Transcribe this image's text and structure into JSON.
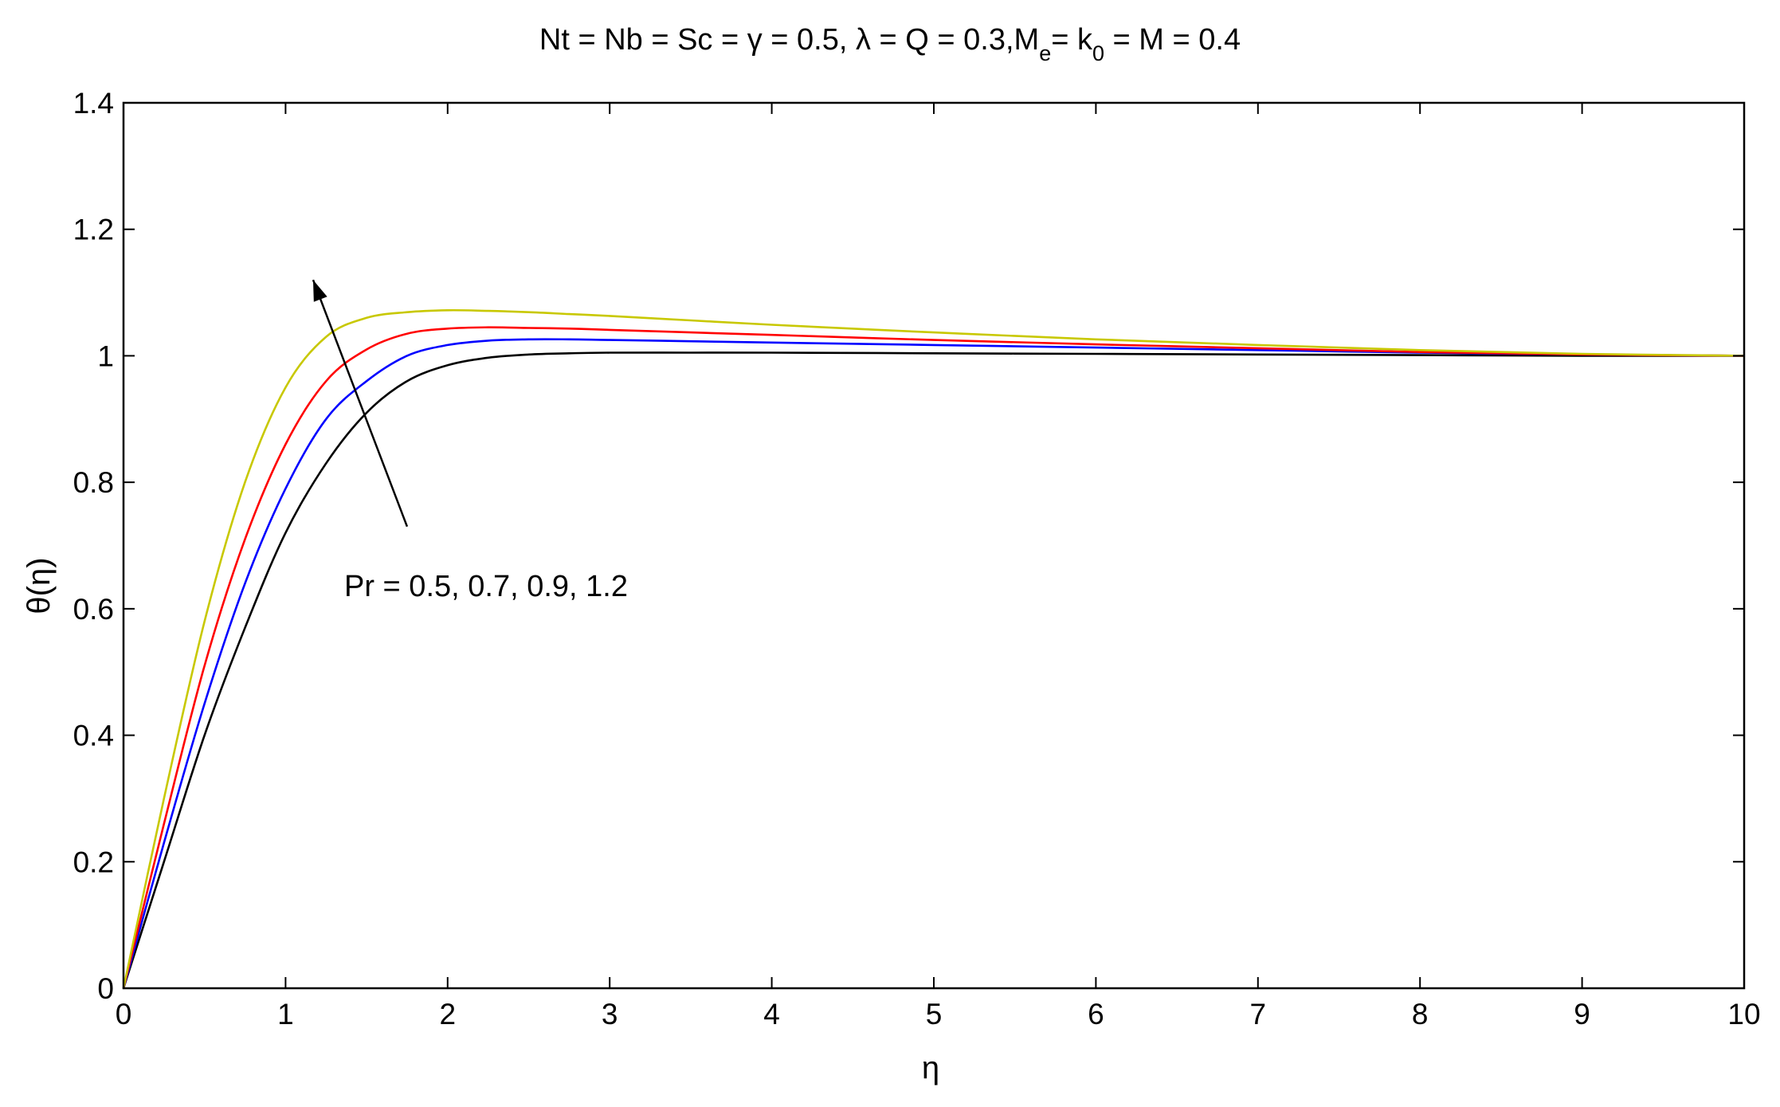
{
  "chart_data": {
    "type": "line",
    "title": "Nt = Nb = Sc = γ = 0.5, λ =  Q = 0.3,M",
    "title_parts": {
      "main": "Nt = Nb = Sc = γ = 0.5, λ =  Q = 0.3,M",
      "sub_e": "e",
      "mid": "= k",
      "sub_0": "0",
      "tail": " = M = 0.4"
    },
    "xlabel": "η",
    "ylabel": "θ(η)",
    "xlim": [
      0,
      10
    ],
    "ylim": [
      0,
      1.4
    ],
    "xticks": [
      0,
      1,
      2,
      3,
      4,
      5,
      6,
      7,
      8,
      9,
      10
    ],
    "xtick_labels": [
      "0",
      "1",
      "2",
      "3",
      "4",
      "5",
      "6",
      "7",
      "8",
      "9",
      "10"
    ],
    "yticks": [
      0,
      0.2,
      0.4,
      0.6,
      0.8,
      1.0,
      1.2,
      1.4
    ],
    "ytick_labels": [
      "0",
      "0.2",
      "0.4",
      "0.6",
      "0.8",
      "1",
      "1.2",
      "1.4"
    ],
    "grid": false,
    "legend": "none",
    "annotation": {
      "text": "Pr = 0.5, 0.7, 0.9, 1.2",
      "arrow_from": [
        1.75,
        0.73
      ],
      "arrow_to": [
        1.17,
        1.12
      ]
    },
    "series": [
      {
        "color": "#000000",
        "x": [
          0,
          0.25,
          0.5,
          0.75,
          1.0,
          1.25,
          1.5,
          1.75,
          2.0,
          2.25,
          2.5,
          2.75,
          3.0,
          3.5,
          4.0,
          5.0,
          6.0,
          7.0,
          8.0,
          9.0,
          10.0
        ],
        "y": [
          0.0,
          0.2,
          0.4,
          0.57,
          0.72,
          0.83,
          0.91,
          0.96,
          0.985,
          0.997,
          1.002,
          1.004,
          1.005,
          1.005,
          1.005,
          1.004,
          1.003,
          1.002,
          1.001,
          1.0,
          1.0
        ]
      },
      {
        "color": "#0000ff",
        "x": [
          0,
          0.25,
          0.5,
          0.75,
          1.0,
          1.25,
          1.5,
          1.75,
          2.0,
          2.25,
          2.5,
          2.75,
          3.0,
          3.5,
          4.0,
          5.0,
          6.0,
          7.0,
          8.0,
          9.0,
          10.0
        ],
        "y": [
          0.0,
          0.23,
          0.45,
          0.64,
          0.79,
          0.9,
          0.96,
          1.0,
          1.017,
          1.024,
          1.026,
          1.026,
          1.025,
          1.023,
          1.021,
          1.017,
          1.013,
          1.009,
          1.005,
          1.002,
          1.0
        ]
      },
      {
        "color": "#ff0000",
        "x": [
          0,
          0.25,
          0.5,
          0.75,
          1.0,
          1.25,
          1.5,
          1.75,
          2.0,
          2.25,
          2.5,
          2.75,
          3.0,
          3.5,
          4.0,
          5.0,
          6.0,
          7.0,
          8.0,
          9.0,
          10.0
        ],
        "y": [
          0.0,
          0.26,
          0.51,
          0.71,
          0.86,
          0.96,
          1.01,
          1.035,
          1.043,
          1.045,
          1.044,
          1.043,
          1.041,
          1.037,
          1.033,
          1.025,
          1.018,
          1.012,
          1.006,
          1.002,
          1.0
        ]
      },
      {
        "color": "#c8c800",
        "x": [
          0,
          0.25,
          0.5,
          0.75,
          1.0,
          1.25,
          1.5,
          1.75,
          2.0,
          2.25,
          2.5,
          2.75,
          3.0,
          3.5,
          4.0,
          5.0,
          6.0,
          7.0,
          8.0,
          9.0,
          10.0
        ],
        "y": [
          0.0,
          0.3,
          0.58,
          0.8,
          0.95,
          1.03,
          1.06,
          1.069,
          1.072,
          1.071,
          1.069,
          1.066,
          1.063,
          1.056,
          1.049,
          1.037,
          1.026,
          1.017,
          1.009,
          1.003,
          1.0
        ]
      }
    ]
  }
}
